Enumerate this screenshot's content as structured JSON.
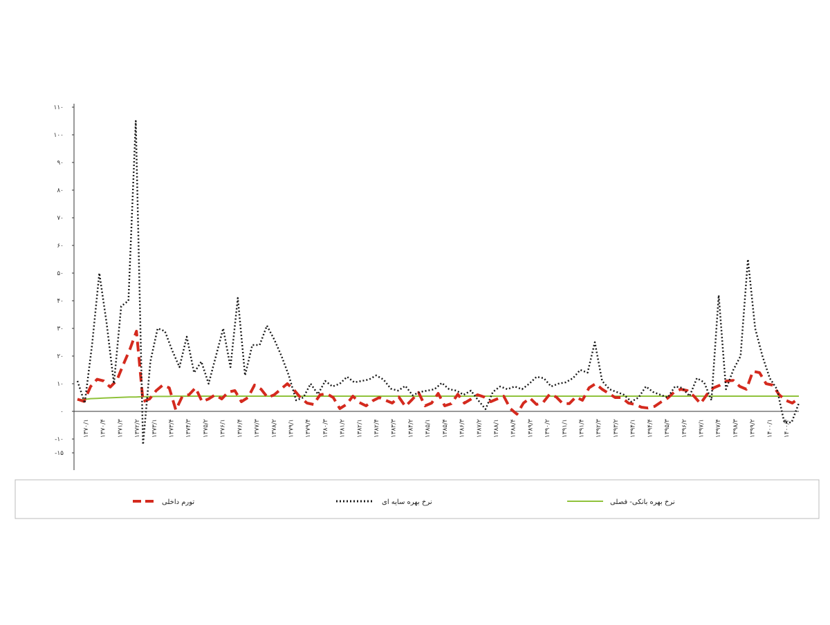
{
  "chart_data": {
    "type": "line",
    "title": "",
    "xlabel": "",
    "ylabel": "",
    "ylim": [
      -150,
      1100
    ],
    "yticks": [
      1100,
      1000,
      900,
      800,
      700,
      600,
      500,
      400,
      300,
      200,
      100,
      0,
      -100,
      -150
    ],
    "ytick_labels": [
      "۱۱۰",
      "۱۰۰",
      "۹۰",
      "۸۰",
      "۷۰",
      "۶۰",
      "۵۰",
      "۴۰",
      "۳۰",
      "۲۰",
      "۱۰",
      "۰",
      "-۱۰",
      "-۱۵"
    ],
    "x_tick_labels": [
      "۱۳۷۰/۱",
      "۱۳۷۰/۴",
      "۱۳۷۱/۳",
      "۱۳۷۲/۲",
      "۱۳۷۳/۱",
      "۱۳۷۳/۴",
      "۱۳۷۴/۳",
      "۱۳۷۵/۲",
      "۱۳۷۶/۱",
      "۱۳۷۶/۴",
      "۱۳۷۷/۳",
      "۱۳۷۸/۲",
      "۱۳۷۹/۱",
      "۱۳۷۹/۴",
      "۱۳۸۰/۳",
      "۱۳۸۱/۲",
      "۱۳۸۲/۱",
      "۱۳۸۲/۴",
      "۱۳۸۳/۳",
      "۱۳۸۴/۲",
      "۱۳۸۵/۱",
      "۱۳۸۵/۴",
      "۱۳۸۶/۳",
      "۱۳۸۷/۲",
      "۱۳۸۸/۱",
      "۱۳۸۸/۴",
      "۱۳۸۹/۳",
      "۱۳۹۰/۲",
      "۱۳۹۱/۱",
      "۱۳۹۱/۴",
      "۱۳۹۲/۳",
      "۱۳۹۳/۲",
      "۱۳۹۴/۱",
      "۱۳۹۴/۴",
      "۱۳۹۵/۳",
      "۱۳۹۶/۲",
      "۱۳۹۷/۱",
      "۱۳۹۷/۴",
      "۱۳۹۸/۳",
      "۱۳۹۹/۲",
      "۱۴۰۰/۱",
      "۱۴۰۰/۴"
    ],
    "legend_placement": "bottom",
    "grid": false,
    "series": [
      {
        "name": "تورم داخلی",
        "color": "#d42a1e",
        "style": "dashed",
        "values": [
          44,
          36,
          90,
          116,
          110,
          88,
          112,
          170,
          225,
          290,
          35,
          45,
          75,
          95,
          85,
          5,
          55,
          60,
          85,
          35,
          45,
          60,
          45,
          70,
          75,
          35,
          50,
          95,
          80,
          50,
          60,
          80,
          100,
          78,
          50,
          30,
          25,
          60,
          64,
          50,
          10,
          25,
          55,
          32,
          20,
          38,
          50,
          40,
          30,
          52,
          18,
          42,
          68,
          20,
          30,
          65,
          20,
          28,
          62,
          30,
          44,
          60,
          52,
          35,
          45,
          55,
          10,
          -10,
          30,
          48,
          25,
          32,
          62,
          52,
          28,
          28,
          52,
          40,
          85,
          100,
          80,
          65,
          50,
          50,
          30,
          25,
          15,
          12,
          18,
          34,
          48,
          70,
          80,
          75,
          55,
          28,
          62,
          85,
          95,
          110,
          112,
          90,
          80,
          145,
          140,
          100,
          95,
          60,
          40,
          30,
          48
        ]
      },
      {
        "name": "نرخ بهره سایه ای",
        "color": "#1a1a1a",
        "style": "dotted",
        "values": [
          110,
          30,
          240,
          500,
          320,
          100,
          380,
          400,
          1050,
          -120,
          180,
          300,
          290,
          220,
          160,
          270,
          140,
          180,
          100,
          200,
          300,
          160,
          410,
          130,
          240,
          240,
          310,
          260,
          200,
          130,
          40,
          50,
          100,
          62,
          110,
          90,
          100,
          125,
          105,
          110,
          115,
          130,
          115,
          82,
          75,
          92,
          58,
          70,
          75,
          80,
          103,
          80,
          75,
          60,
          75,
          40,
          8,
          70,
          90,
          80,
          90,
          80,
          100,
          125,
          120,
          90,
          100,
          105,
          120,
          150,
          140,
          250,
          110,
          80,
          70,
          60,
          35,
          50,
          90,
          70,
          60,
          50,
          90,
          85,
          55,
          120,
          105,
          40,
          420,
          80,
          150,
          200,
          550,
          300,
          200,
          120,
          80,
          -40,
          -40,
          30
        ]
      },
      {
        "name": "نرخ بهره بانکی- فصلی",
        "color": "#8fc23a",
        "style": "solid",
        "values": [
          40,
          43,
          46,
          47,
          48,
          49,
          50,
          51,
          52,
          52,
          53,
          53,
          54,
          54,
          54,
          55,
          55,
          55,
          55,
          55,
          55,
          55,
          55,
          55,
          55,
          55,
          55,
          55,
          55,
          55,
          55,
          55,
          55,
          55,
          55,
          55,
          55,
          55,
          55,
          55,
          55,
          55,
          55,
          55,
          55,
          55,
          55,
          55,
          55,
          55,
          55,
          55,
          55,
          55,
          55,
          55,
          55,
          55,
          55,
          55,
          55,
          55,
          55,
          55,
          55,
          55,
          55,
          55,
          55,
          55,
          55,
          55,
          55,
          55,
          55,
          55,
          55,
          55,
          55,
          55,
          55,
          55,
          55,
          55,
          55,
          55,
          55,
          55,
          55,
          55,
          55,
          55,
          55,
          55,
          55,
          55,
          55,
          55,
          55,
          55,
          55,
          55,
          55,
          55,
          55,
          55,
          55,
          55,
          55,
          55,
          55,
          55
        ]
      }
    ]
  }
}
